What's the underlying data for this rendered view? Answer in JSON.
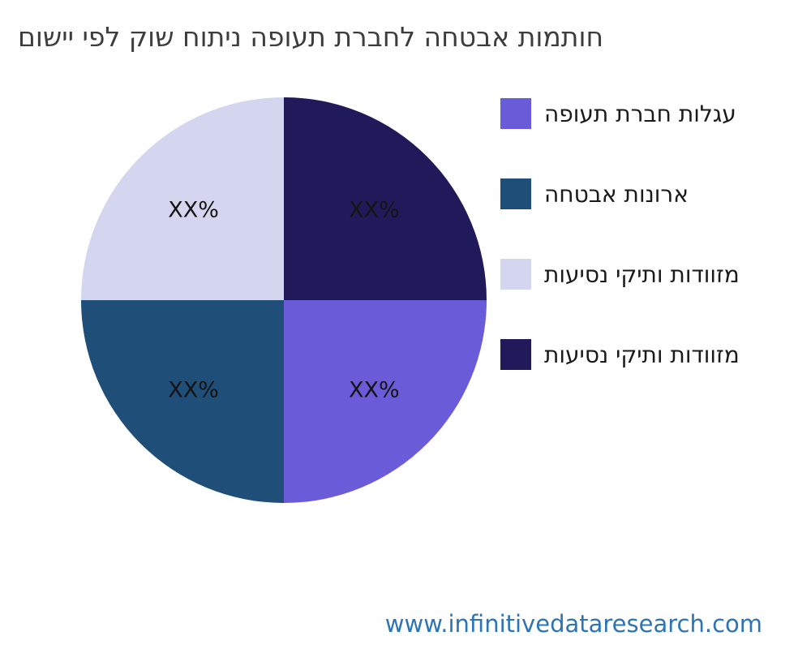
{
  "chart_data": {
    "type": "pie",
    "title": "חותמות אבטחה לחברת תעופה ניתוח שוק לפי יישום",
    "legend_position": "right",
    "start": "top",
    "direction": "clockwise",
    "slices": [
      {
        "label": "עגלות חברת תעופה",
        "value": 25,
        "display": "XX%",
        "color": "#6a5cd8",
        "clock_order": 2
      },
      {
        "label": "ארונות אבטחה",
        "value": 25,
        "display": "XX%",
        "color": "#1f4e79",
        "clock_order": 3
      },
      {
        "label": "מזוודות ותיקי נסיעות",
        "value": 25,
        "display": "XX%",
        "color": "#d4d6f0",
        "clock_order": 4
      },
      {
        "label": "מזוודות ותיקי נסיעות",
        "value": 25,
        "display": "XX%",
        "color": "#201a5b",
        "clock_order": 1
      }
    ]
  },
  "footer": {
    "website": "www.infinitivedataresearch.com"
  }
}
